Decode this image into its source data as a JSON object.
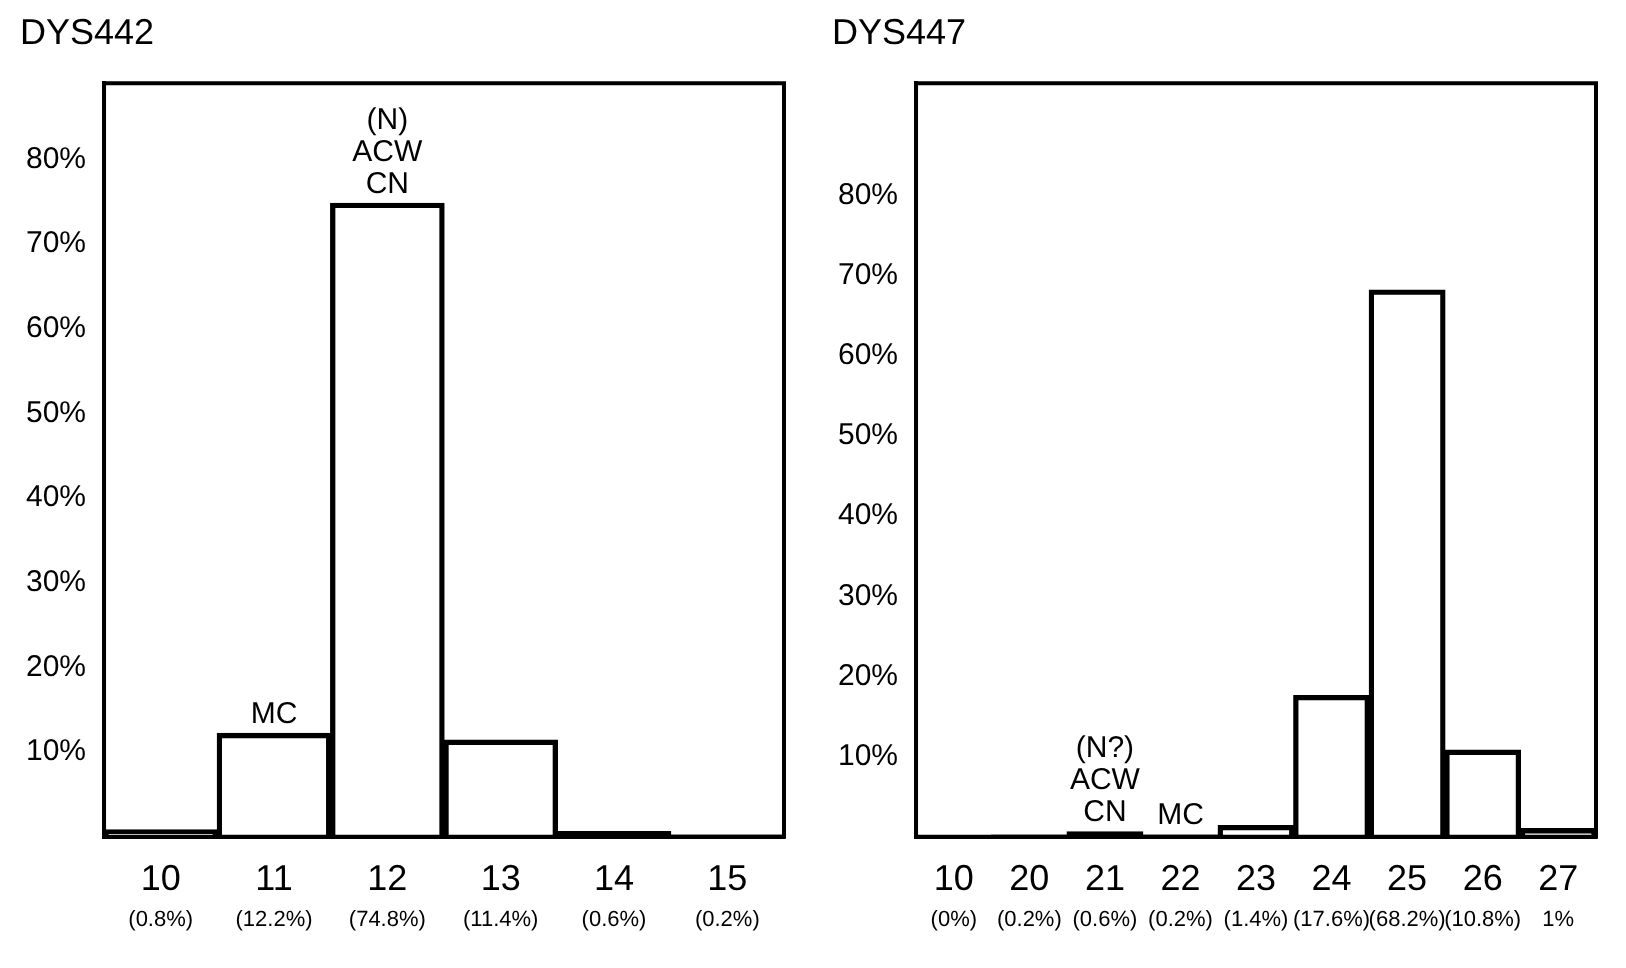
{
  "chart_data": [
    {
      "type": "bar",
      "title": "DYS442",
      "categories": [
        "10",
        "11",
        "12",
        "13",
        "14",
        "15"
      ],
      "values": [
        0.8,
        12.2,
        74.8,
        11.4,
        0.6,
        0.2
      ],
      "color": "#000000",
      "value_labels": [
        "(0.8%)",
        "(12.2%)",
        "(74.8%)",
        "(11.4%)",
        "(0.6%)",
        "(0.2%)"
      ],
      "ylim": [
        0,
        89
      ],
      "yticks": [
        {
          "value": 10,
          "label": "10%"
        },
        {
          "value": 20,
          "label": "20%"
        },
        {
          "value": 30,
          "label": "30%"
        },
        {
          "value": 40,
          "label": "40%"
        },
        {
          "value": 50,
          "label": "50%"
        },
        {
          "value": 60,
          "label": "60%"
        },
        {
          "value": 70,
          "label": "70%"
        },
        {
          "value": 80,
          "label": "80%"
        }
      ],
      "annotations": [
        {
          "text": "(N)\nACW\nCN",
          "x": "12",
          "y": 74.8
        },
        {
          "text": "MC",
          "x": "11",
          "y": 12.2
        }
      ],
      "grid": false,
      "legend": false
    },
    {
      "type": "bar",
      "title": "DYS447",
      "categories": [
        "10",
        "20",
        "21",
        "22",
        "23",
        "24",
        "25",
        "26",
        "27"
      ],
      "values": [
        0,
        0.2,
        0.6,
        0.2,
        1.4,
        17.6,
        68.2,
        10.8,
        1
      ],
      "color": "#000000",
      "value_labels": [
        "(0%)",
        "(0.2%)",
        "(0.6%)",
        "(0.2%)",
        "(1.4%)",
        "(17.6%)",
        "(68.2%)",
        "(10.8%)",
        "1%"
      ],
      "ylim": [
        0,
        94
      ],
      "yticks": [
        {
          "value": 10,
          "label": "10%"
        },
        {
          "value": 20,
          "label": "20%"
        },
        {
          "value": 30,
          "label": "30%"
        },
        {
          "value": 40,
          "label": "40%"
        },
        {
          "value": 50,
          "label": "50%"
        },
        {
          "value": 60,
          "label": "60%"
        },
        {
          "value": 70,
          "label": "70%"
        },
        {
          "value": 80,
          "label": "80%"
        }
      ],
      "annotations": [
        {
          "text": "(N?)\nACW\nCN",
          "x": "21",
          "y": 0.6
        },
        {
          "text": "MC",
          "x": "22",
          "y": 0.2
        }
      ],
      "grid": false,
      "legend": false
    }
  ]
}
